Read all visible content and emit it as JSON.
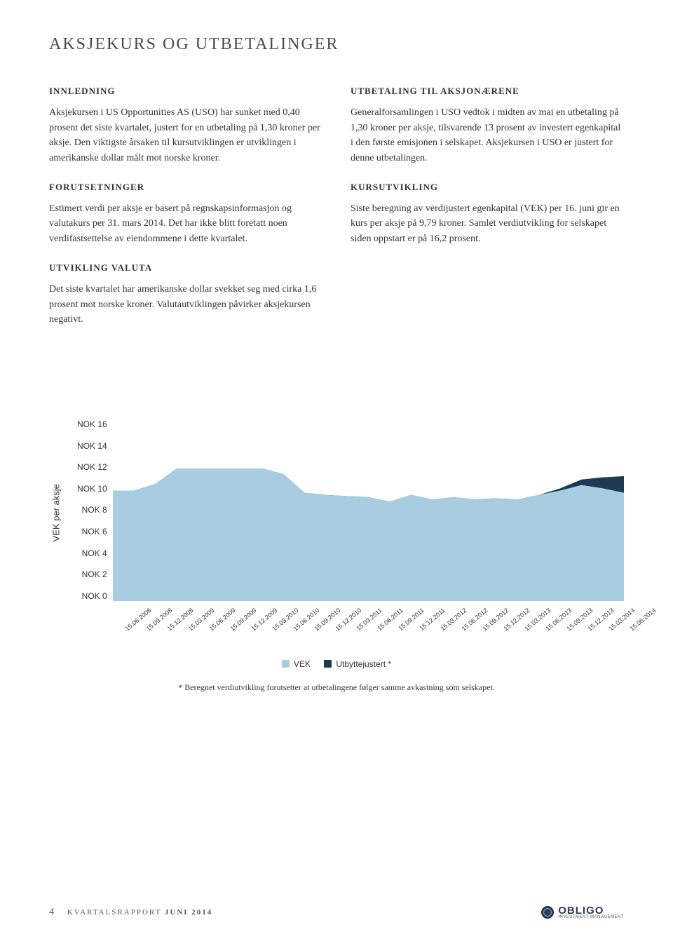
{
  "page_title": "AKSJEKURS OG UTBETALINGER",
  "left_column": {
    "s1_heading": "INNLEDNING",
    "s1_body": "Aksjekursen i US Opportunities AS (USO) har sunket med 0,40 prosent det siste kvartalet, justert for en utbetaling på 1,30 kroner per aksje. Den viktigste årsaken til kursutviklingen er utviklingen i amerikanske dollar målt mot norske kroner.",
    "s2_heading": "FORUTSETNINGER",
    "s2_body": "Estimert verdi per aksje er basert på regnskapsinformasjon og valutakurs per 31. mars 2014. Det har ikke blitt foretatt noen verdifastsettelse av eiendommene i dette kvartalet.",
    "s3_heading": "UTVIKLING VALUTA",
    "s3_body": "Det siste kvartalet har amerikanske dollar svekket seg med cirka 1,6 prosent mot norske kroner. Valutautviklingen påvirker aksjekursen negativt."
  },
  "right_column": {
    "s1_heading": "UTBETALING TIL AKSJONÆRENE",
    "s1_body": "Generalforsamlingen i USO vedtok i midten av mai en utbetaling på 1,30 kroner per aksje, tilsvarende 13 prosent av investert egenkapital i den første emisjonen i selskapet. Aksjekursen i USO er justert for denne utbetalingen.",
    "s2_heading": "KURSUTVIKLING",
    "s2_body": "Siste beregning av verdijustert egenkapital (VEK) per 16. juni gir en kurs per aksje på 9,79 kroner. Samlet verdiutvikling for selskapet siden oppstart er på 16,2 prosent."
  },
  "chart": {
    "type": "area",
    "y_axis_label": "VEK per aksje",
    "y_ticks": [
      "NOK 16",
      "NOK 14",
      "NOK 12",
      "NOK 10",
      "NOK 8",
      "NOK 6",
      "NOK 4",
      "NOK 2",
      "NOK 0"
    ],
    "y_max": 16,
    "y_min": 0,
    "x_labels": [
      "15.06.2008",
      "15.09.2008",
      "15.12.2008",
      "15.03.2009",
      "15.06.2009",
      "15.09.2009",
      "15.12.2009",
      "15.03.2010",
      "15.06.2010",
      "15.09.2010",
      "15.12.2010",
      "15.03.2011",
      "15.06.2011",
      "15.09.2011",
      "15.12.2011",
      "15.03.2012",
      "15.06.2012",
      "15.09.2012",
      "15.12.2012",
      "15.03.2013",
      "15.06.2013",
      "15.09.2013",
      "15.12.2013",
      "15.03.2014",
      "15.06.2014"
    ],
    "series_vek": {
      "color": "#a8cde0",
      "values": [
        10.0,
        10.0,
        10.6,
        12.0,
        12.0,
        12.0,
        12.0,
        12.0,
        11.5,
        9.8,
        9.6,
        9.5,
        9.4,
        9.0,
        9.6,
        9.2,
        9.4,
        9.2,
        9.3,
        9.2,
        9.6,
        10.0,
        10.5,
        10.2,
        9.8
      ]
    },
    "series_utbytte": {
      "color": "#1f3954",
      "values": [
        10.0,
        10.0,
        10.6,
        12.0,
        12.0,
        12.0,
        12.0,
        12.0,
        11.5,
        9.8,
        9.6,
        9.5,
        9.4,
        9.0,
        9.6,
        9.2,
        9.4,
        9.2,
        9.3,
        9.2,
        9.6,
        10.2,
        11.0,
        11.2,
        11.3
      ]
    },
    "legend_vek": "VEK",
    "legend_utbytte": "Utbyttejustert *",
    "footnote": "* Beregnet verdiutvikling forutsetter at utbetalingene følger samme avkastning som selskapet."
  },
  "footer": {
    "page_number": "4",
    "doc_label": "KVARTALSRAPPORT",
    "doc_period": "JUNI 2014",
    "logo_name": "OBLIGO",
    "logo_sub": "INVESTMENT MANAGEMENT"
  }
}
